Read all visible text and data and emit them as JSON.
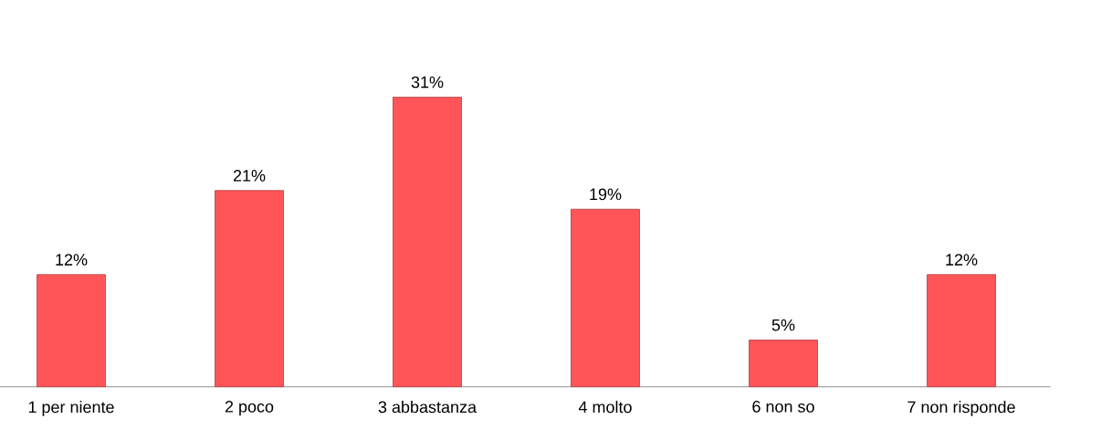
{
  "chart_data": {
    "type": "bar",
    "categories": [
      "1 per niente",
      "2 poco",
      "3 abbastanza",
      "4 molto",
      "6 non so",
      "7 non risponde"
    ],
    "values": [
      12,
      21,
      31,
      19,
      5,
      12
    ],
    "value_labels": [
      "12%",
      "21%",
      "31%",
      "19%",
      "5%",
      "12%"
    ],
    "color": "#ff5559"
  }
}
